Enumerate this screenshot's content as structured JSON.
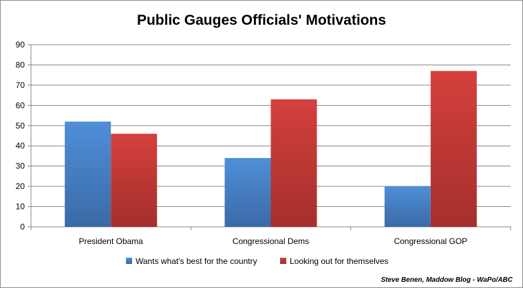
{
  "chart_data": {
    "type": "bar",
    "title": "Public Gauges Officials' Motivations",
    "categories": [
      "President Obama",
      "Congressional Dems",
      "Congressional GOP"
    ],
    "series": [
      {
        "name": "Wants what's best for the country",
        "values": [
          52,
          34,
          20
        ],
        "color": "#4a7ebb"
      },
      {
        "name": "Looking out for themselves",
        "values": [
          46,
          63,
          77
        ],
        "color": "#be4b48"
      }
    ],
    "ylim": [
      0,
      90
    ],
    "yticks": [
      0,
      10,
      20,
      30,
      40,
      50,
      60,
      70,
      80,
      90
    ],
    "grid": true,
    "legend_position": "bottom"
  },
  "credit": "Steve Benen, Maddow Blog - WaPo/ABC"
}
